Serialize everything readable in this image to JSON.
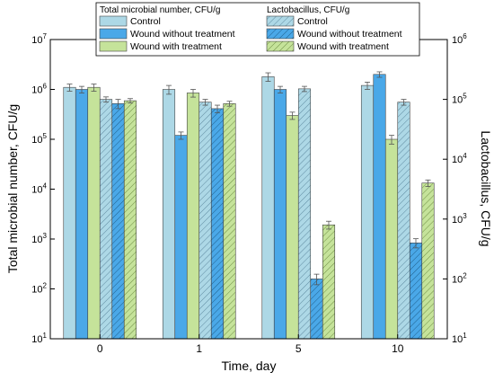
{
  "chart_data": {
    "type": "bar",
    "xlabel": "Time, day",
    "ylabel_left": "Total microbial number, CFU/g",
    "ylabel_right": "Lactobacillus, CFU/g",
    "yscale": "log",
    "ylim_left": [
      10,
      10000000
    ],
    "ylim_right": [
      10,
      1000000
    ],
    "yticks_left": [
      {
        "base": "10",
        "exp": "1"
      },
      {
        "base": "10",
        "exp": "2"
      },
      {
        "base": "10",
        "exp": "3"
      },
      {
        "base": "10",
        "exp": "4"
      },
      {
        "base": "10",
        "exp": "5"
      },
      {
        "base": "10",
        "exp": "6"
      },
      {
        "base": "10",
        "exp": "7"
      }
    ],
    "yticks_right": [
      {
        "base": "10",
        "exp": "1"
      },
      {
        "base": "10",
        "exp": "2"
      },
      {
        "base": "10",
        "exp": "3"
      },
      {
        "base": "10",
        "exp": "4"
      },
      {
        "base": "10",
        "exp": "5"
      },
      {
        "base": "10",
        "exp": "6"
      }
    ],
    "categories": [
      "0",
      "1",
      "5",
      "10"
    ],
    "legend": {
      "left_title": "Total microbial number, CFU/g",
      "right_title": "Lactobacillus, CFU/g"
    },
    "series": [
      {
        "name": "Control",
        "group": "total",
        "axis": "left",
        "color": "#add8e6",
        "hatch": false,
        "values": [
          1100000,
          1000000,
          1800000,
          1200000
        ],
        "errors": [
          180000,
          200000,
          350000,
          200000
        ]
      },
      {
        "name": "Wound without treatment",
        "group": "total",
        "axis": "left",
        "color": "#4aa8e8",
        "hatch": false,
        "values": [
          1000000,
          120000,
          1000000,
          2000000
        ],
        "errors": [
          150000,
          20000,
          150000,
          250000
        ]
      },
      {
        "name": "Wound with treatment",
        "group": "total",
        "axis": "left",
        "color": "#c5e39a",
        "hatch": false,
        "values": [
          1100000,
          850000,
          300000,
          100000
        ],
        "errors": [
          180000,
          150000,
          50000,
          20000
        ]
      },
      {
        "name": "Control",
        "group": "lactobacillus",
        "axis": "right",
        "color": "#add8e6",
        "hatch": true,
        "values": [
          100000,
          90000,
          150000,
          90000
        ],
        "errors": [
          10000,
          10000,
          15000,
          10000
        ]
      },
      {
        "name": "Wound without treatment",
        "group": "lactobacillus",
        "axis": "right",
        "color": "#4aa8e8",
        "hatch": true,
        "values": [
          85000,
          70000,
          100,
          400
        ],
        "errors": [
          15000,
          10000,
          20,
          70
        ]
      },
      {
        "name": "Wound with treatment",
        "group": "lactobacillus",
        "axis": "right",
        "color": "#c5e39a",
        "hatch": true,
        "values": [
          95000,
          85000,
          800,
          4000
        ],
        "errors": [
          8000,
          8000,
          120,
          500
        ]
      }
    ]
  }
}
